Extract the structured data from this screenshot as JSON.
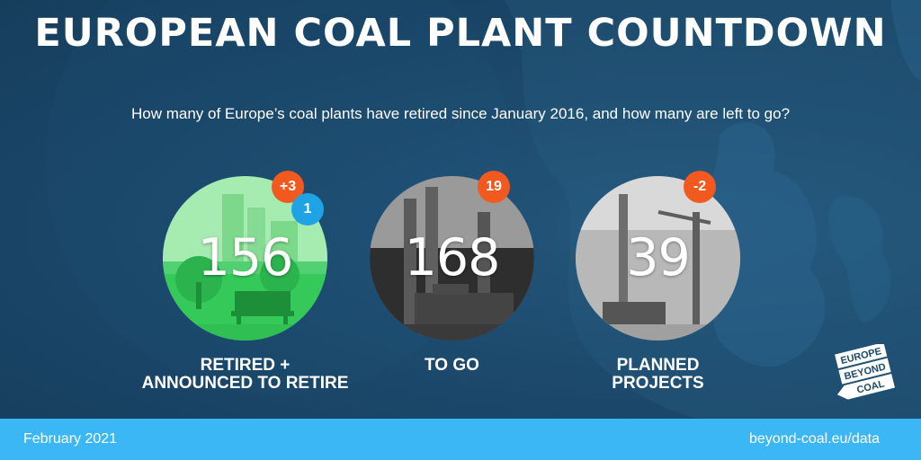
{
  "title": "EUROPEAN COAL PLANT COUNTDOWN",
  "subtitle": "How many of Europe’s coal plants have retired since January 2016, and how many are left to go?",
  "stats": [
    {
      "value": "156",
      "label_line1": "RETIRED +",
      "label_line2": "ANNOUNCED TO RETIRE",
      "badges": [
        "+3",
        "1"
      ]
    },
    {
      "value": "168",
      "label_line1": "TO GO",
      "badges": [
        "19"
      ]
    },
    {
      "value": "39",
      "label_line1": "PLANNED",
      "label_line2": "PROJECTS",
      "badges": [
        "-2"
      ]
    }
  ],
  "logo_text": [
    "EUROPE",
    "BEYOND",
    "COAL"
  ],
  "footer": {
    "date": "February 2021",
    "url": "beyond-coal.eu/data"
  },
  "colors": {
    "background": "#1c4a6d",
    "footer": "#3cb7f6",
    "badge_orange": "#f1591f",
    "badge_blue": "#1fa3e4",
    "green": "#35c95a"
  }
}
